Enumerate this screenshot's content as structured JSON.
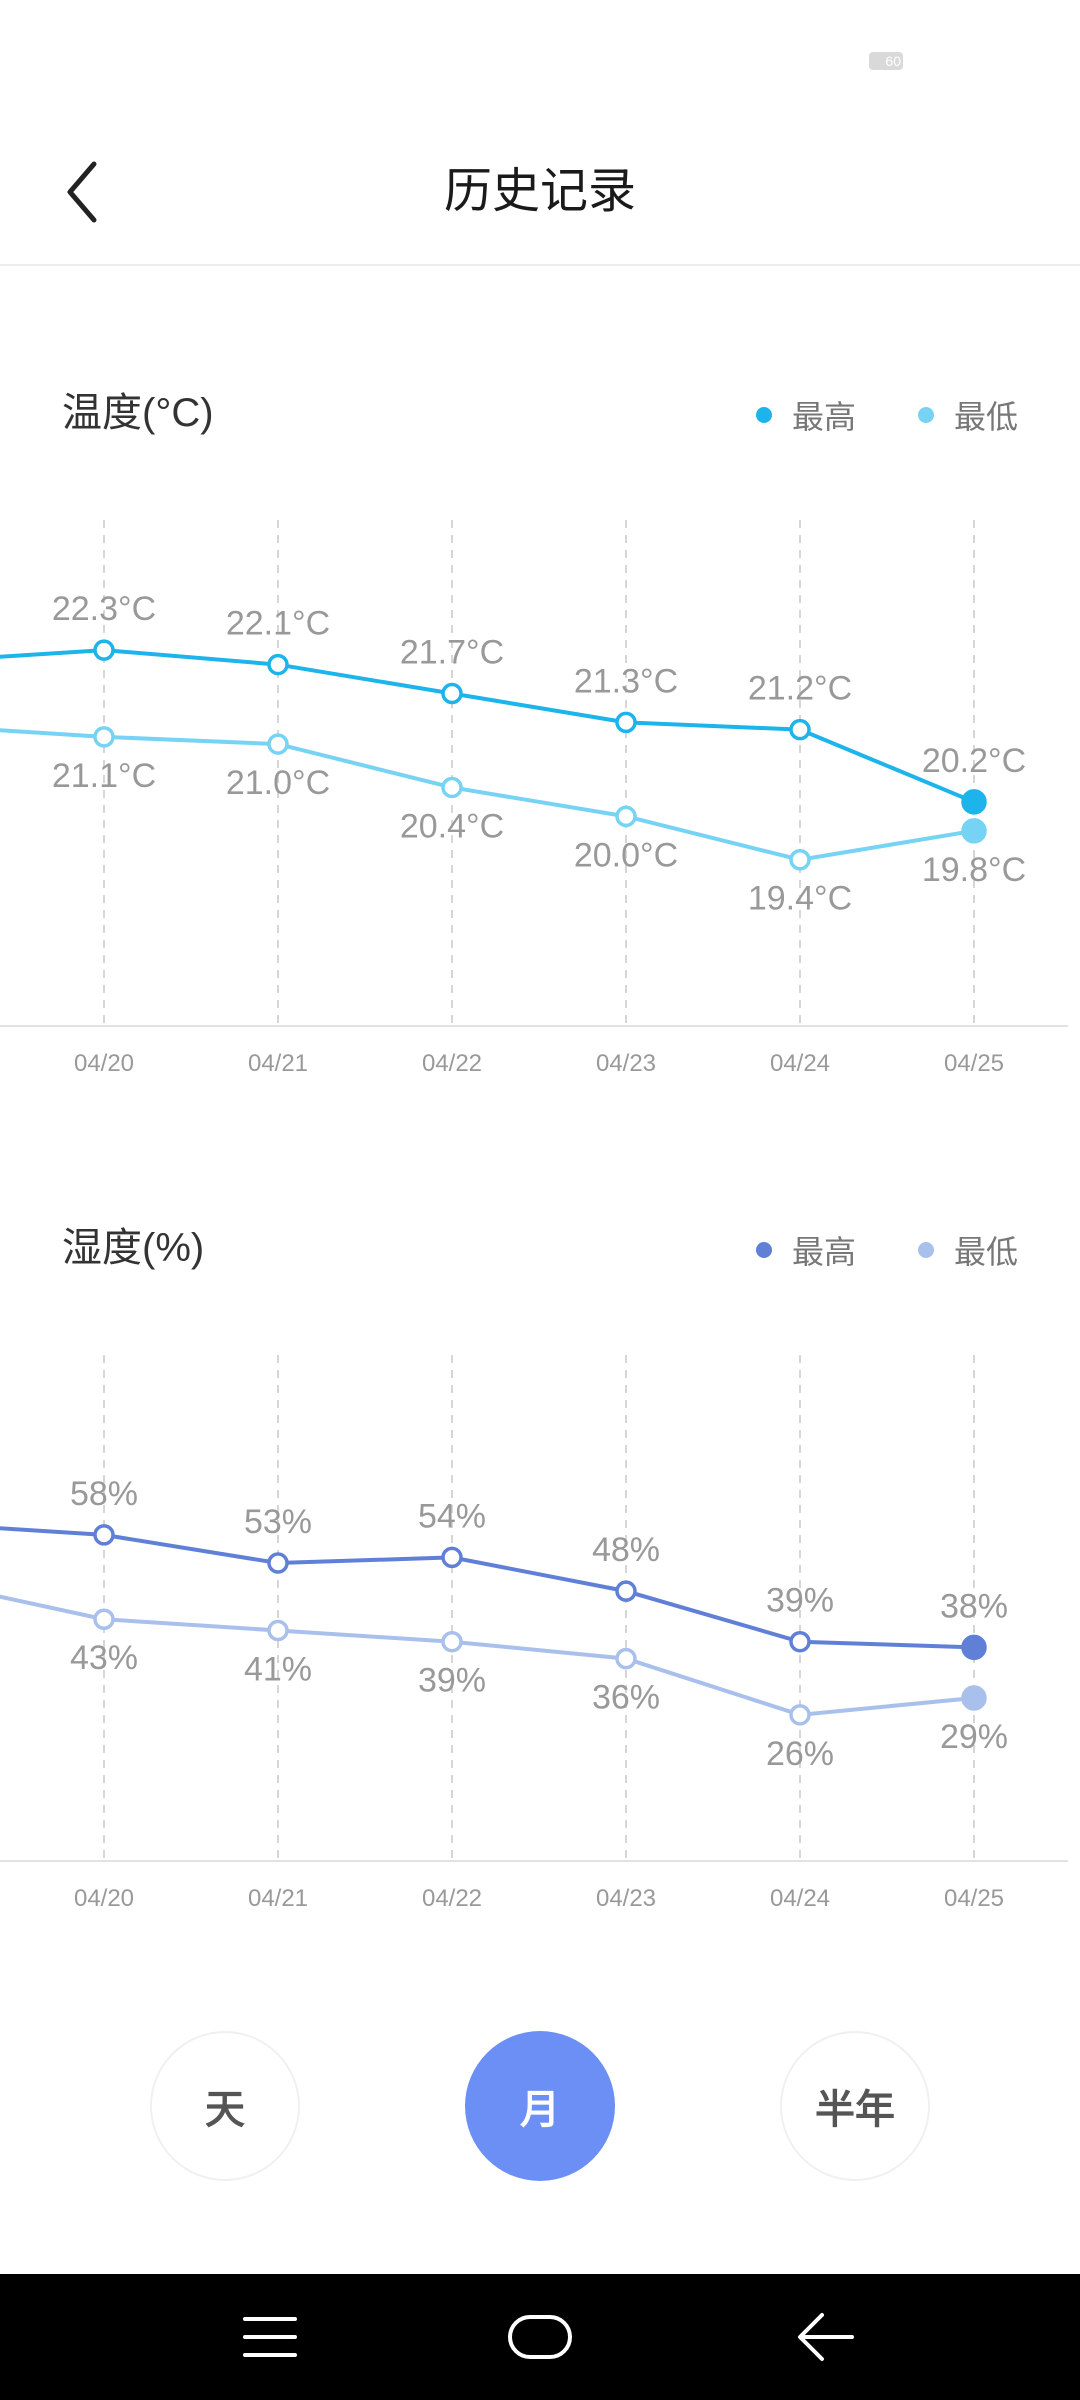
{
  "status_bar": {
    "battery_text": "60"
  },
  "header": {
    "title": "历史记录"
  },
  "temperature": {
    "title": "温度(°C)",
    "legend": {
      "high_label": "最高",
      "low_label": "最低"
    },
    "colors": {
      "high": "#1cb4ea",
      "low": "#77d3f3"
    },
    "chart_data": {
      "type": "line",
      "categories": [
        "04/20",
        "04/21",
        "04/22",
        "04/23",
        "04/24",
        "04/25"
      ],
      "series": [
        {
          "name": "最高",
          "values": [
            22.3,
            22.1,
            21.7,
            21.3,
            21.2,
            20.2
          ],
          "labels": [
            "22.3°C",
            "22.1°C",
            "21.7°C",
            "21.3°C",
            "21.2°C",
            "20.2°C"
          ]
        },
        {
          "name": "最低",
          "values": [
            21.1,
            21.0,
            20.4,
            20.0,
            19.4,
            19.8
          ],
          "labels": [
            "21.1°C",
            "21.0°C",
            "20.4°C",
            "20.0°C",
            "19.4°C",
            "19.8°C"
          ]
        }
      ],
      "offscreen_left": {
        "high": 22.2,
        "low": 21.2
      },
      "ylim": [
        17.1,
        24.1
      ],
      "grid": "vertical-dashed"
    }
  },
  "humidity": {
    "title": "湿度(%)",
    "legend": {
      "high_label": "最高",
      "low_label": "最低"
    },
    "colors": {
      "high": "#6080d8",
      "low": "#a9c0ec"
    },
    "chart_data": {
      "type": "line",
      "categories": [
        "04/20",
        "04/21",
        "04/22",
        "04/23",
        "04/24",
        "04/25"
      ],
      "series": [
        {
          "name": "最高",
          "values": [
            58,
            53,
            54,
            48,
            39,
            38
          ],
          "labels": [
            "58%",
            "53%",
            "54%",
            "48%",
            "39%",
            "38%"
          ]
        },
        {
          "name": "最低",
          "values": [
            43,
            41,
            39,
            36,
            26,
            29
          ],
          "labels": [
            "43%",
            "41%",
            "39%",
            "36%",
            "26%",
            "29%"
          ]
        }
      ],
      "offscreen_left": {
        "high": 59.3,
        "low": 47.4
      },
      "ylim": [
        0,
        90
      ],
      "grid": "vertical-dashed"
    }
  },
  "range_selector": {
    "day": "天",
    "month": "月",
    "half_year": "半年",
    "selected": "月"
  },
  "nav": {
    "menu_icon": "menu-icon",
    "home_icon": "home-icon",
    "back_icon": "back-arrow-icon"
  }
}
